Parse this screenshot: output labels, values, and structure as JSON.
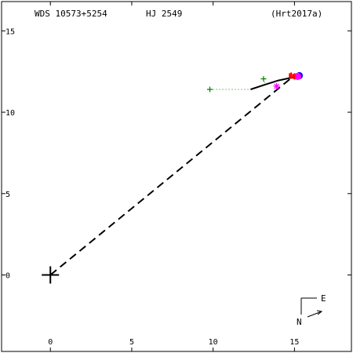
{
  "header": {
    "wds_id": "WDS 10573+5254",
    "discoverer": "HJ 2549",
    "orbit_ref": "(Hrt2017a)"
  },
  "compass": {
    "east_label": "E",
    "north_label": "N"
  },
  "colors": {
    "axes": "#000000",
    "orbit": "#000000",
    "early_measures": "#008000",
    "speckle_measures": "#ff00ff",
    "recent_measure": "#0000ff",
    "residual": "#ff0000",
    "background": "#ffffff"
  },
  "chart_data": {
    "type": "scatter",
    "title": "",
    "xlabel": "",
    "ylabel": "",
    "xlim": [
      -3,
      18.5
    ],
    "ylim": [
      -4.7,
      16.8
    ],
    "x_ticks": [
      0,
      5,
      10,
      15
    ],
    "y_ticks": [
      0,
      5,
      10,
      15
    ],
    "x_tick_labels": [
      "0",
      "5",
      "10",
      "15"
    ],
    "y_tick_labels": [
      "0",
      "5",
      "10",
      "15"
    ],
    "grid": false,
    "primary_star": {
      "x": 0,
      "y": 0
    },
    "line_of_nodes": {
      "from": [
        0,
        0
      ],
      "to": [
        14.8,
        12.1
      ],
      "style": "dashed"
    },
    "orbit_arc": [
      [
        12.3,
        11.4
      ],
      [
        13.2,
        11.7
      ],
      [
        14.0,
        11.95
      ],
      [
        14.7,
        12.1
      ],
      [
        15.3,
        12.25
      ]
    ],
    "series": [
      {
        "marker": "plus",
        "color": "green",
        "points": [
          [
            9.8,
            11.4
          ],
          [
            13.1,
            12.05
          ]
        ]
      },
      {
        "marker": "star",
        "color": "magenta",
        "points": [
          [
            13.9,
            11.6
          ],
          [
            15.1,
            12.2
          ]
        ]
      },
      {
        "marker": "circle",
        "color": "blue",
        "points": [
          [
            15.3,
            12.25
          ]
        ]
      },
      {
        "marker": "circle",
        "color": "magenta",
        "points": [
          [
            15.2,
            12.2
          ]
        ]
      }
    ],
    "residuals": [
      {
        "from": [
          9.8,
          11.4
        ],
        "to": [
          12.3,
          11.4
        ],
        "style": "dotted",
        "color": "green"
      },
      {
        "from": [
          13.1,
          12.05
        ],
        "to": [
          13.2,
          11.7
        ],
        "style": "dotted",
        "color": "green"
      }
    ],
    "red_markers": [
      [
        14.8,
        12.25
      ],
      [
        15.0,
        12.2
      ]
    ]
  }
}
